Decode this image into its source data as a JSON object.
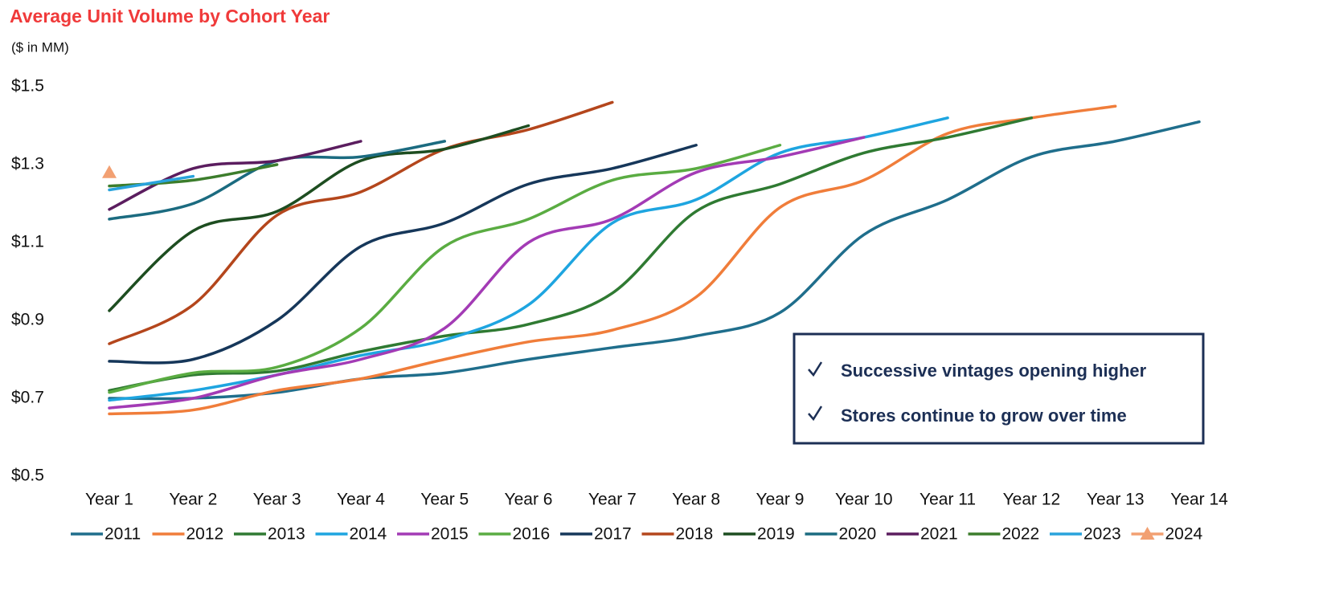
{
  "chart_data": {
    "type": "line",
    "title": "Average Unit Volume by Cohort Year",
    "subtitle": "($ in MM)",
    "categories": [
      "Year 1",
      "Year 2",
      "Year 3",
      "Year 4",
      "Year 5",
      "Year 6",
      "Year 7",
      "Year 8",
      "Year 9",
      "Year 10",
      "Year 11",
      "Year 12",
      "Year 13",
      "Year 14"
    ],
    "ylim": [
      0.5,
      1.5
    ],
    "yticks": [
      {
        "value": 0.5,
        "label": "$0.5"
      },
      {
        "value": 0.7,
        "label": "$0.7"
      },
      {
        "value": 0.9,
        "label": "$0.9"
      },
      {
        "value": 1.1,
        "label": "$1.1"
      },
      {
        "value": 1.3,
        "label": "$1.3"
      },
      {
        "value": 1.5,
        "label": "$1.5"
      }
    ],
    "legend": "bottom",
    "annotations": [
      "Successive vintages opening higher",
      "Stores continue to grow over time"
    ],
    "series": [
      {
        "name": "2011",
        "color": "#1f6e8c",
        "values": [
          0.7,
          0.7,
          0.715,
          0.75,
          0.765,
          0.8,
          0.83,
          0.86,
          0.92,
          1.12,
          1.21,
          1.32,
          1.36,
          1.41
        ]
      },
      {
        "name": "2012",
        "color": "#f07d3a",
        "values": [
          0.66,
          0.67,
          0.72,
          0.75,
          0.8,
          0.845,
          0.875,
          0.96,
          1.19,
          1.26,
          1.38,
          1.42,
          1.45,
          null
        ]
      },
      {
        "name": "2013",
        "color": "#2f7a32",
        "values": [
          0.72,
          0.76,
          0.77,
          0.82,
          0.86,
          0.89,
          0.97,
          1.18,
          1.25,
          1.33,
          1.37,
          1.42,
          null,
          null
        ]
      },
      {
        "name": "2014",
        "color": "#1ea5e0",
        "values": [
          0.695,
          0.72,
          0.76,
          0.81,
          0.85,
          0.94,
          1.15,
          1.21,
          1.33,
          1.37,
          1.42,
          null,
          null,
          null
        ]
      },
      {
        "name": "2015",
        "color": "#a33bb5",
        "values": [
          0.675,
          0.7,
          0.76,
          0.8,
          0.88,
          1.1,
          1.16,
          1.28,
          1.32,
          1.37,
          null,
          null,
          null,
          null
        ]
      },
      {
        "name": "2016",
        "color": "#5aac42",
        "values": [
          0.715,
          0.765,
          0.78,
          0.88,
          1.09,
          1.16,
          1.26,
          1.29,
          1.35,
          null,
          null,
          null,
          null,
          null
        ]
      },
      {
        "name": "2017",
        "color": "#16375a",
        "values": [
          0.795,
          0.8,
          0.9,
          1.09,
          1.15,
          1.25,
          1.29,
          1.35,
          null,
          null,
          null,
          null,
          null,
          null
        ]
      },
      {
        "name": "2018",
        "color": "#b4461c",
        "values": [
          0.84,
          0.94,
          1.17,
          1.23,
          1.34,
          1.39,
          1.46,
          null,
          null,
          null,
          null,
          null,
          null,
          null
        ]
      },
      {
        "name": "2019",
        "color": "#1d4d20",
        "values": [
          0.925,
          1.13,
          1.18,
          1.31,
          1.34,
          1.4,
          null,
          null,
          null,
          null,
          null,
          null,
          null,
          null
        ]
      },
      {
        "name": "2020",
        "color": "#1b6b80",
        "values": [
          1.16,
          1.2,
          1.31,
          1.32,
          1.36,
          null,
          null,
          null,
          null,
          null,
          null,
          null,
          null,
          null
        ]
      },
      {
        "name": "2021",
        "color": "#5b1d5f",
        "values": [
          1.185,
          1.29,
          1.31,
          1.36,
          null,
          null,
          null,
          null,
          null,
          null,
          null,
          null,
          null,
          null
        ]
      },
      {
        "name": "2022",
        "color": "#3c7d2c",
        "values": [
          1.245,
          1.26,
          1.3,
          null,
          null,
          null,
          null,
          null,
          null,
          null,
          null,
          null,
          null,
          null
        ]
      },
      {
        "name": "2023",
        "color": "#29a3dc",
        "values": [
          1.235,
          1.27,
          null,
          null,
          null,
          null,
          null,
          null,
          null,
          null,
          null,
          null,
          null,
          null
        ]
      },
      {
        "name": "2024",
        "color": "#f2a072",
        "marker": "triangle",
        "values": [
          1.28,
          null,
          null,
          null,
          null,
          null,
          null,
          null,
          null,
          null,
          null,
          null,
          null,
          null
        ]
      }
    ]
  }
}
